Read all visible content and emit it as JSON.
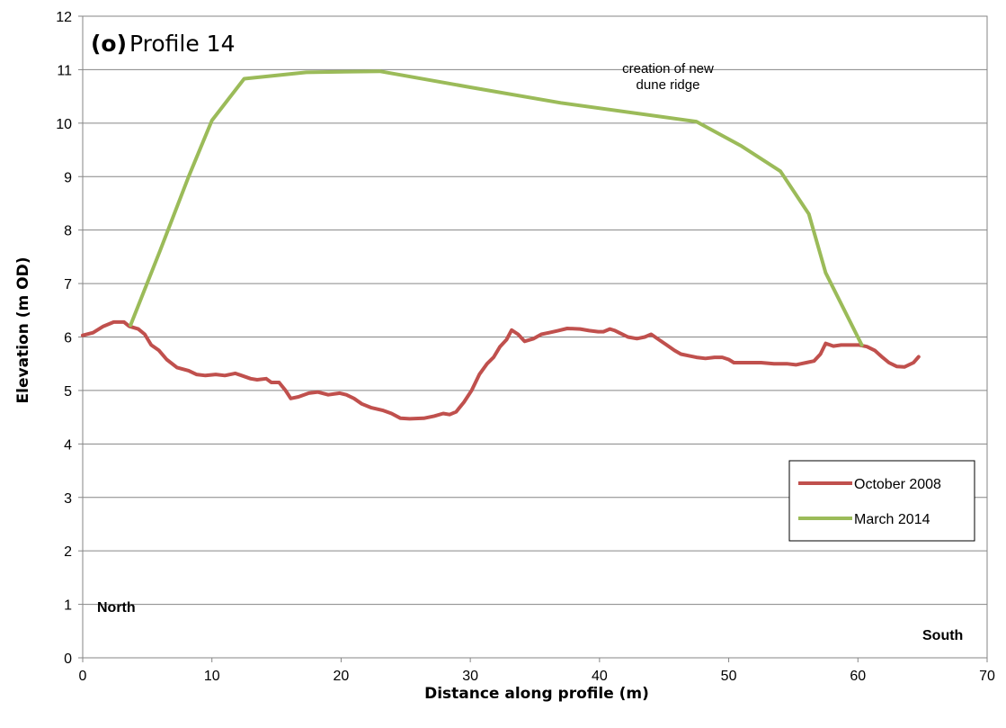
{
  "chart_data": {
    "type": "line",
    "panel_label": "(o)",
    "title": "Profile 14",
    "xlabel": "Distance along profile (m)",
    "ylabel": "Elevation (m OD)",
    "xlim": [
      0,
      70
    ],
    "ylim": [
      0,
      12
    ],
    "x_ticks": [
      0,
      10,
      20,
      30,
      40,
      50,
      60,
      70
    ],
    "y_ticks": [
      0,
      1,
      2,
      3,
      4,
      5,
      6,
      7,
      8,
      9,
      10,
      11,
      12
    ],
    "grid": "horizontal",
    "legend_position": "lower-right",
    "annotations": {
      "ridge_line1": "creation of new",
      "ridge_line2": "dune ridge",
      "left_direction": "North",
      "right_direction": "South"
    },
    "series": [
      {
        "name": "October 2008",
        "color": "#c0504d",
        "points": [
          [
            0,
            6.03
          ],
          [
            0.8,
            6.08
          ],
          [
            1.6,
            6.2
          ],
          [
            2.4,
            6.28
          ],
          [
            3.2,
            6.28
          ],
          [
            3.6,
            6.2
          ],
          [
            4.3,
            6.15
          ],
          [
            4.8,
            6.05
          ],
          [
            5.3,
            5.85
          ],
          [
            5.9,
            5.75
          ],
          [
            6.5,
            5.58
          ],
          [
            7.3,
            5.43
          ],
          [
            8.2,
            5.37
          ],
          [
            8.8,
            5.3
          ],
          [
            9.5,
            5.28
          ],
          [
            10.3,
            5.3
          ],
          [
            11.0,
            5.28
          ],
          [
            11.8,
            5.32
          ],
          [
            12.3,
            5.28
          ],
          [
            13.0,
            5.22
          ],
          [
            13.5,
            5.2
          ],
          [
            14.2,
            5.22
          ],
          [
            14.6,
            5.15
          ],
          [
            15.2,
            5.15
          ],
          [
            15.7,
            5.0
          ],
          [
            16.1,
            4.85
          ],
          [
            16.7,
            4.88
          ],
          [
            17.5,
            4.95
          ],
          [
            18.2,
            4.97
          ],
          [
            19.0,
            4.92
          ],
          [
            19.9,
            4.95
          ],
          [
            20.4,
            4.92
          ],
          [
            21.0,
            4.85
          ],
          [
            21.6,
            4.75
          ],
          [
            22.3,
            4.68
          ],
          [
            23.2,
            4.63
          ],
          [
            23.9,
            4.57
          ],
          [
            24.6,
            4.48
          ],
          [
            25.3,
            4.47
          ],
          [
            26.4,
            4.48
          ],
          [
            27.2,
            4.52
          ],
          [
            27.9,
            4.57
          ],
          [
            28.4,
            4.55
          ],
          [
            28.9,
            4.6
          ],
          [
            29.5,
            4.78
          ],
          [
            30.1,
            5.0
          ],
          [
            30.7,
            5.3
          ],
          [
            31.3,
            5.5
          ],
          [
            31.8,
            5.62
          ],
          [
            32.3,
            5.82
          ],
          [
            32.8,
            5.95
          ],
          [
            33.2,
            6.13
          ],
          [
            33.7,
            6.05
          ],
          [
            34.2,
            5.92
          ],
          [
            34.9,
            5.97
          ],
          [
            35.5,
            6.05
          ],
          [
            36.1,
            6.08
          ],
          [
            36.8,
            6.12
          ],
          [
            37.5,
            6.16
          ],
          [
            38.5,
            6.15
          ],
          [
            39.2,
            6.12
          ],
          [
            39.9,
            6.1
          ],
          [
            40.3,
            6.1
          ],
          [
            40.8,
            6.15
          ],
          [
            41.2,
            6.12
          ],
          [
            41.6,
            6.07
          ],
          [
            42.2,
            6.0
          ],
          [
            42.9,
            5.97
          ],
          [
            43.5,
            6.0
          ],
          [
            44.0,
            6.05
          ],
          [
            44.6,
            5.95
          ],
          [
            45.2,
            5.85
          ],
          [
            45.8,
            5.75
          ],
          [
            46.3,
            5.68
          ],
          [
            46.9,
            5.65
          ],
          [
            47.5,
            5.62
          ],
          [
            48.2,
            5.6
          ],
          [
            48.9,
            5.62
          ],
          [
            49.5,
            5.62
          ],
          [
            50.0,
            5.58
          ],
          [
            50.4,
            5.52
          ],
          [
            51.5,
            5.52
          ],
          [
            52.5,
            5.52
          ],
          [
            53.5,
            5.5
          ],
          [
            54.5,
            5.5
          ],
          [
            55.2,
            5.48
          ],
          [
            56.0,
            5.52
          ],
          [
            56.6,
            5.55
          ],
          [
            57.1,
            5.68
          ],
          [
            57.5,
            5.88
          ],
          [
            58.1,
            5.83
          ],
          [
            58.7,
            5.85
          ],
          [
            59.4,
            5.85
          ],
          [
            60.1,
            5.85
          ],
          [
            60.7,
            5.82
          ],
          [
            61.3,
            5.75
          ],
          [
            61.9,
            5.62
          ],
          [
            62.4,
            5.52
          ],
          [
            63.0,
            5.45
          ],
          [
            63.6,
            5.44
          ],
          [
            64.3,
            5.52
          ],
          [
            64.7,
            5.63
          ]
        ]
      },
      {
        "name": "March 2014",
        "color": "#9bbb59",
        "points": [
          [
            3.7,
            6.22
          ],
          [
            6.0,
            7.62
          ],
          [
            8.2,
            9.0
          ],
          [
            10.0,
            10.05
          ],
          [
            12.5,
            10.83
          ],
          [
            17.3,
            10.95
          ],
          [
            23.0,
            10.97
          ],
          [
            30.0,
            10.67
          ],
          [
            37.0,
            10.38
          ],
          [
            47.5,
            10.03
          ],
          [
            51.0,
            9.57
          ],
          [
            54.0,
            9.1
          ],
          [
            56.2,
            8.3
          ],
          [
            57.5,
            7.2
          ],
          [
            60.3,
            5.85
          ]
        ]
      }
    ]
  }
}
